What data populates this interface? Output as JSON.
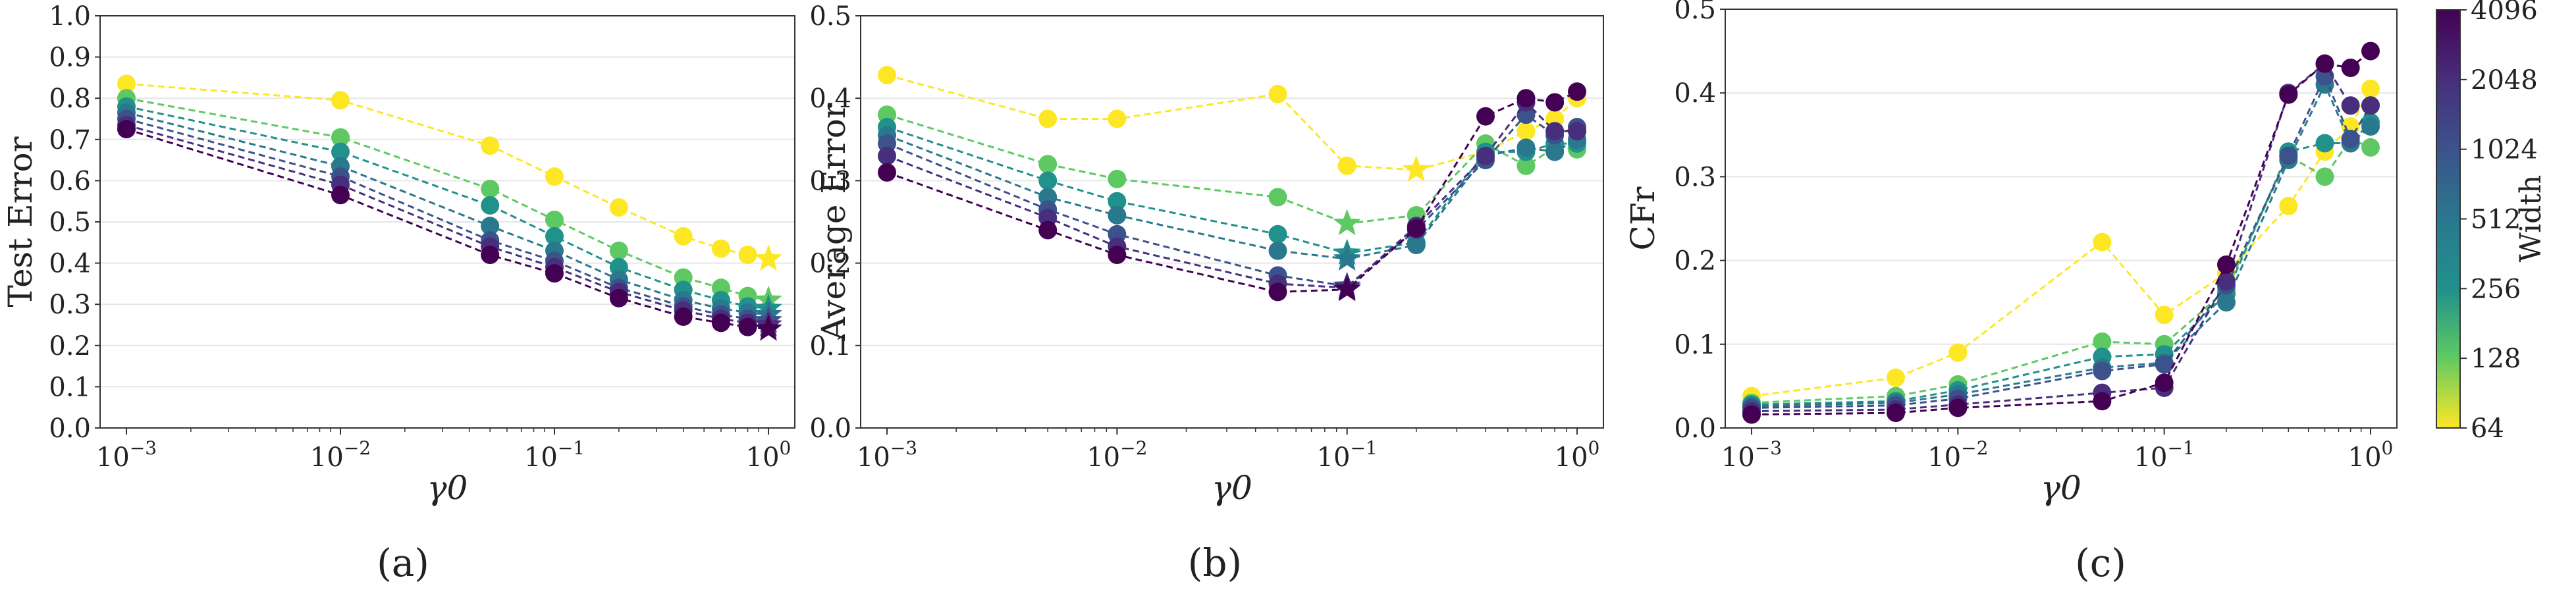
{
  "figure": {
    "colorbar": {
      "label": "Width",
      "tick_labels": [
        "64",
        "128",
        "256",
        "512",
        "1024",
        "2048",
        "4096"
      ],
      "tick_values": [
        64,
        128,
        256,
        512,
        1024,
        2048,
        4096
      ],
      "colors": {
        "64": "#fde725",
        "128": "#5ec962",
        "256": "#21918c",
        "512": "#2a788e",
        "1024": "#3b528b",
        "2048": "#472f7d",
        "4096": "#440154"
      }
    },
    "panel_captions": [
      "(a)",
      "(b)",
      "(c)"
    ]
  },
  "chart_data": [
    {
      "type": "line",
      "panel": "(a)",
      "xlabel": "γ0",
      "ylabel": "Test Error",
      "xscale": "log",
      "xlim": [
        0.001,
        1.0
      ],
      "ylim": [
        0.0,
        1.0
      ],
      "x_ticks": [
        "10^-3",
        "10^-2",
        "10^-1",
        "10^0"
      ],
      "y_ticks": [
        "0.0",
        "0.1",
        "0.2",
        "0.3",
        "0.4",
        "0.5",
        "0.6",
        "0.7",
        "0.8",
        "0.9",
        "1.0"
      ],
      "x": [
        0.001,
        0.01,
        0.05,
        0.1,
        0.2,
        0.4,
        0.6,
        0.8,
        1.0
      ],
      "star_index": 8,
      "series": [
        {
          "name": "64",
          "values": [
            0.835,
            0.795,
            0.685,
            0.61,
            0.535,
            0.465,
            0.435,
            0.42,
            0.41
          ]
        },
        {
          "name": "128",
          "values": [
            0.8,
            0.705,
            0.58,
            0.505,
            0.43,
            0.365,
            0.34,
            0.32,
            0.31
          ]
        },
        {
          "name": "256",
          "values": [
            0.78,
            0.67,
            0.54,
            0.465,
            0.39,
            0.335,
            0.31,
            0.295,
            0.29
          ]
        },
        {
          "name": "512",
          "values": [
            0.765,
            0.635,
            0.49,
            0.43,
            0.36,
            0.31,
            0.29,
            0.28,
            0.275
          ]
        },
        {
          "name": "1024",
          "values": [
            0.75,
            0.61,
            0.455,
            0.405,
            0.34,
            0.295,
            0.275,
            0.265,
            0.26
          ]
        },
        {
          "name": "2048",
          "values": [
            0.735,
            0.59,
            0.44,
            0.39,
            0.33,
            0.285,
            0.265,
            0.255,
            0.25
          ]
        },
        {
          "name": "4096",
          "values": [
            0.725,
            0.565,
            0.42,
            0.375,
            0.315,
            0.27,
            0.255,
            0.245,
            0.24
          ]
        }
      ]
    },
    {
      "type": "line",
      "panel": "(b)",
      "xlabel": "γ0",
      "ylabel": "Average Error",
      "xscale": "log",
      "xlim": [
        0.001,
        1.0
      ],
      "ylim": [
        0.0,
        0.5
      ],
      "x_ticks": [
        "10^-3",
        "10^-2",
        "10^-1",
        "10^0"
      ],
      "y_ticks": [
        "0.0",
        "0.1",
        "0.2",
        "0.3",
        "0.4",
        "0.5"
      ],
      "x": [
        0.001,
        0.005,
        0.01,
        0.05,
        0.1,
        0.2,
        0.4,
        0.6,
        0.8,
        1.0
      ],
      "series": [
        {
          "name": "64",
          "star_index": 5,
          "values": [
            0.428,
            0.375,
            0.375,
            0.405,
            0.318,
            0.313,
            0.335,
            0.36,
            0.375,
            0.4
          ]
        },
        {
          "name": "128",
          "star_index": 4,
          "values": [
            0.38,
            0.32,
            0.302,
            0.28,
            0.248,
            0.258,
            0.345,
            0.318,
            0.34,
            0.338
          ]
        },
        {
          "name": "256",
          "star_index": 4,
          "values": [
            0.365,
            0.3,
            0.275,
            0.235,
            0.212,
            0.225,
            0.335,
            0.335,
            0.345,
            0.345
          ]
        },
        {
          "name": "512",
          "star_index": 4,
          "values": [
            0.355,
            0.28,
            0.258,
            0.215,
            0.205,
            0.222,
            0.33,
            0.34,
            0.335,
            0.35
          ]
        },
        {
          "name": "1024",
          "star_index": 4,
          "values": [
            0.345,
            0.265,
            0.235,
            0.185,
            0.172,
            0.24,
            0.325,
            0.38,
            0.355,
            0.365
          ]
        },
        {
          "name": "2048",
          "star_index": 4,
          "values": [
            0.33,
            0.255,
            0.22,
            0.175,
            0.17,
            0.245,
            0.33,
            0.395,
            0.36,
            0.36
          ]
        },
        {
          "name": "4096",
          "star_index": 4,
          "values": [
            0.31,
            0.24,
            0.21,
            0.165,
            0.168,
            0.242,
            0.378,
            0.4,
            0.395,
            0.408
          ]
        }
      ]
    },
    {
      "type": "line",
      "panel": "(c)",
      "xlabel": "γ0",
      "ylabel": "CFr",
      "xscale": "log",
      "xlim": [
        0.001,
        1.0
      ],
      "ylim": [
        0.0,
        0.5
      ],
      "x_ticks": [
        "10^-3",
        "10^-2",
        "10^-1",
        "10^0"
      ],
      "y_ticks": [
        "0.0",
        "0.1",
        "0.2",
        "0.3",
        "0.4",
        "0.5"
      ],
      "x": [
        0.001,
        0.005,
        0.01,
        0.05,
        0.1,
        0.2,
        0.4,
        0.6,
        0.8,
        1.0
      ],
      "series": [
        {
          "name": "64",
          "values": [
            0.038,
            0.06,
            0.09,
            0.222,
            0.135,
            0.185,
            0.265,
            0.33,
            0.36,
            0.405
          ]
        },
        {
          "name": "128",
          "values": [
            0.03,
            0.038,
            0.052,
            0.103,
            0.1,
            0.165,
            0.325,
            0.3,
            0.345,
            0.335
          ]
        },
        {
          "name": "256",
          "values": [
            0.028,
            0.032,
            0.045,
            0.085,
            0.088,
            0.16,
            0.33,
            0.34,
            0.34,
            0.365
          ]
        },
        {
          "name": "512",
          "values": [
            0.026,
            0.03,
            0.04,
            0.072,
            0.078,
            0.15,
            0.32,
            0.41,
            0.34,
            0.36
          ]
        },
        {
          "name": "1024",
          "values": [
            0.024,
            0.027,
            0.035,
            0.068,
            0.076,
            0.17,
            0.325,
            0.42,
            0.345,
            0.385
          ]
        },
        {
          "name": "2048",
          "values": [
            0.02,
            0.022,
            0.028,
            0.042,
            0.048,
            0.175,
            0.4,
            0.435,
            0.385,
            0.385
          ]
        },
        {
          "name": "4096",
          "values": [
            0.016,
            0.018,
            0.024,
            0.032,
            0.054,
            0.195,
            0.398,
            0.435,
            0.43,
            0.45
          ]
        }
      ]
    }
  ]
}
